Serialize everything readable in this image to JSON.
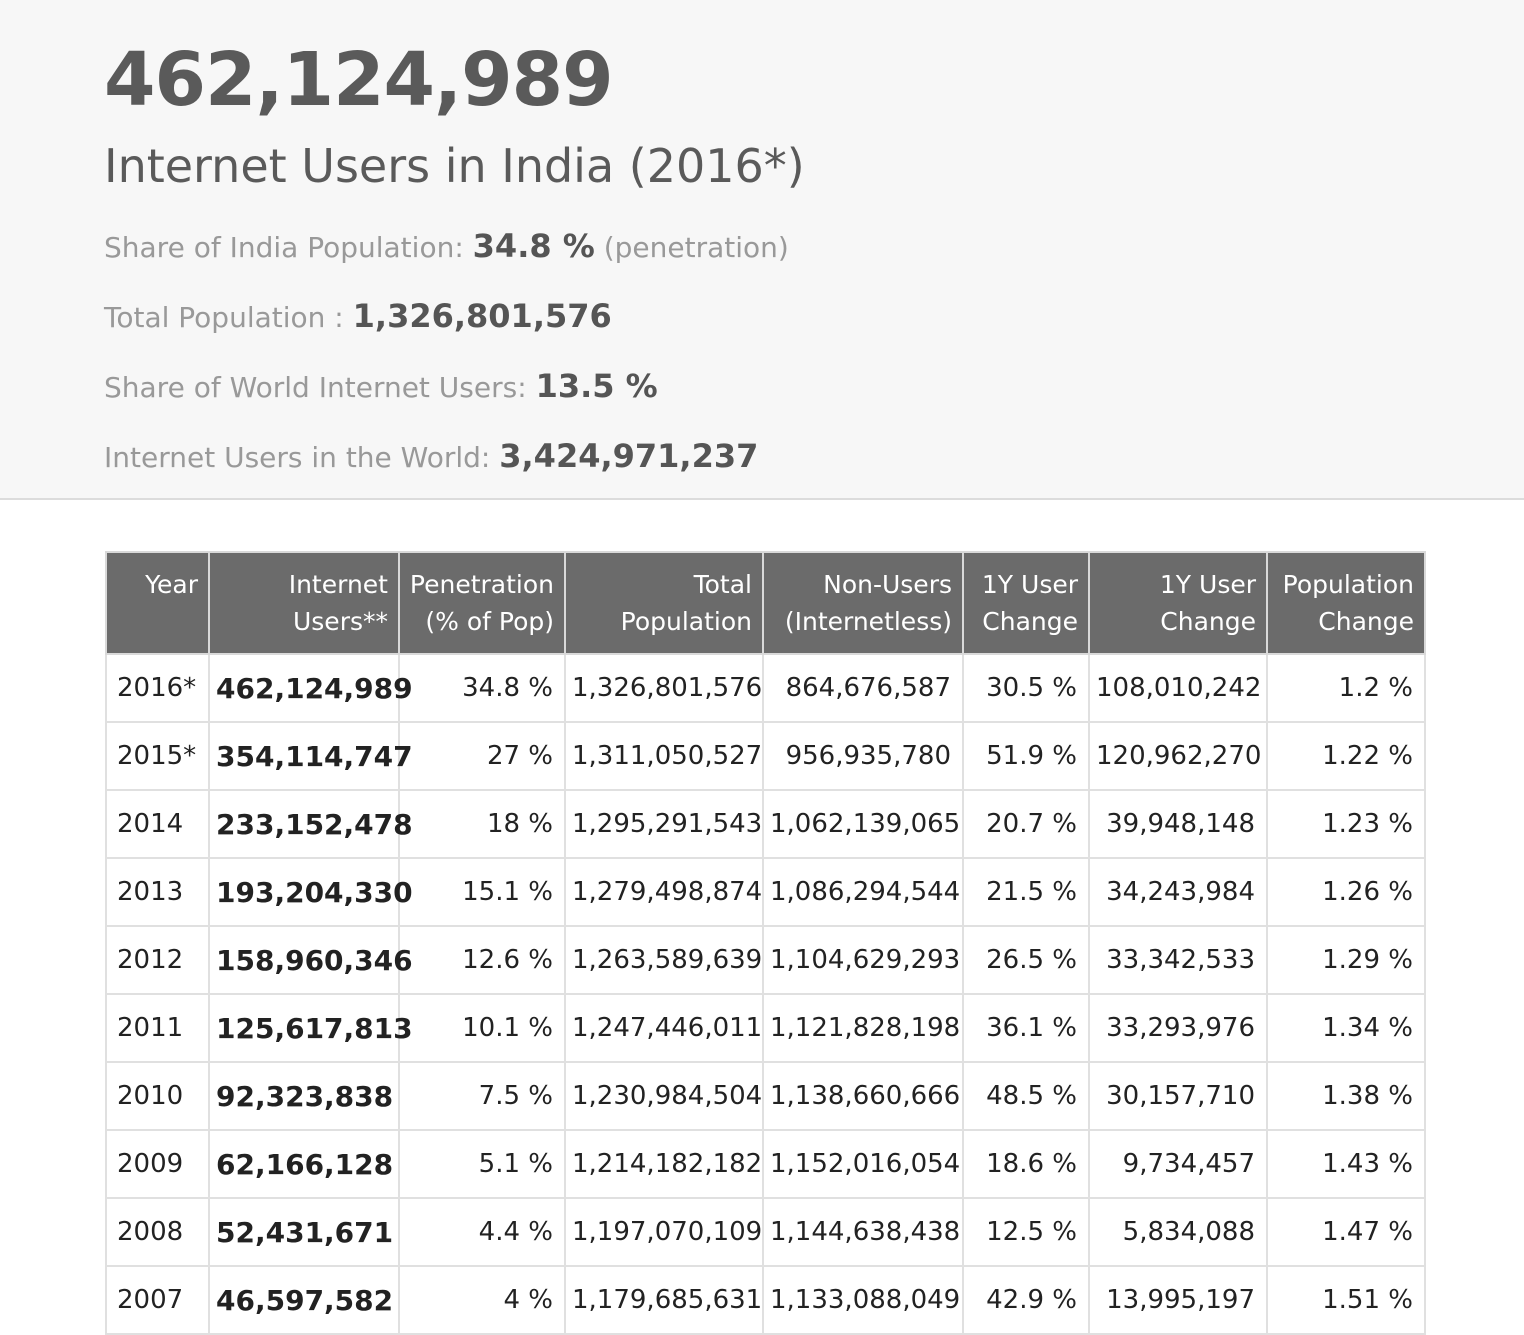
{
  "summary": {
    "big_number": "462,124,989",
    "headline": "Internet Users in India (2016*)",
    "share_pop_label": "Share of India Population: ",
    "share_pop_value": "34.8 %",
    "share_pop_note": " (penetration)",
    "total_pop_label": "Total Population : ",
    "total_pop_value": "1,326,801,576",
    "share_world_label": "Share of World Internet Users: ",
    "share_world_value": "13.5 %",
    "world_users_label": "Internet Users in the World: ",
    "world_users_value": "3,424,971,237"
  },
  "table": {
    "headers": [
      [
        "Year"
      ],
      [
        "Internet",
        "Users**"
      ],
      [
        "Penetration",
        "(% of Pop)"
      ],
      [
        "Total",
        "Population"
      ],
      [
        "Non-Users",
        "(Internetless)"
      ],
      [
        "1Y User",
        "Change"
      ],
      [
        "1Y User",
        "Change"
      ],
      [
        "Population",
        "Change"
      ]
    ],
    "rows": [
      [
        "2016*",
        "462,124,989",
        "34.8 %",
        "1,326,801,576",
        "864,676,587",
        "30.5 %",
        "108,010,242",
        "1.2 %"
      ],
      [
        "2015*",
        "354,114,747",
        "27 %",
        "1,311,050,527",
        "956,935,780",
        "51.9 %",
        "120,962,270",
        "1.22 %"
      ],
      [
        "2014",
        "233,152,478",
        "18 %",
        "1,295,291,543",
        "1,062,139,065",
        "20.7 %",
        "39,948,148",
        "1.23 %"
      ],
      [
        "2013",
        "193,204,330",
        "15.1 %",
        "1,279,498,874",
        "1,086,294,544",
        "21.5 %",
        "34,243,984",
        "1.26 %"
      ],
      [
        "2012",
        "158,960,346",
        "12.6 %",
        "1,263,589,639",
        "1,104,629,293",
        "26.5 %",
        "33,342,533",
        "1.29 %"
      ],
      [
        "2011",
        "125,617,813",
        "10.1 %",
        "1,247,446,011",
        "1,121,828,198",
        "36.1 %",
        "33,293,976",
        "1.34 %"
      ],
      [
        "2010",
        "92,323,838",
        "7.5 %",
        "1,230,984,504",
        "1,138,660,666",
        "48.5 %",
        "30,157,710",
        "1.38 %"
      ],
      [
        "2009",
        "62,166,128",
        "5.1 %",
        "1,214,182,182",
        "1,152,016,054",
        "18.6 %",
        "9,734,457",
        "1.43 %"
      ],
      [
        "2008",
        "52,431,671",
        "4.4 %",
        "1,197,070,109",
        "1,144,638,438",
        "12.5 %",
        "5,834,088",
        "1.47 %"
      ],
      [
        "2007",
        "46,597,582",
        "4 %",
        "1,179,685,631",
        "1,133,088,049",
        "42.9 %",
        "13,995,197",
        "1.51 %"
      ]
    ]
  }
}
